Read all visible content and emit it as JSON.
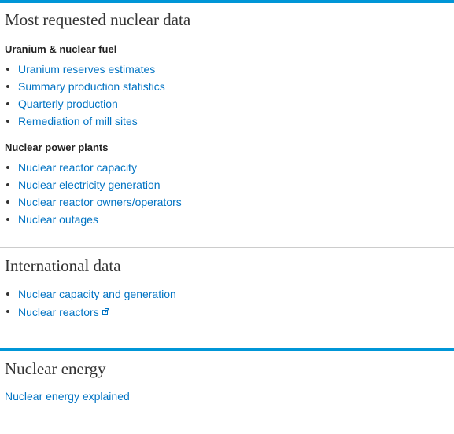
{
  "sections": {
    "most_requested": {
      "title": "Most requested nuclear data",
      "groups": [
        {
          "title": "Uranium & nuclear fuel",
          "links": [
            "Uranium reserves estimates",
            "Summary production statistics",
            "Quarterly production",
            "Remediation of mill sites"
          ]
        },
        {
          "title": "Nuclear power plants",
          "links": [
            "Nuclear reactor capacity",
            "Nuclear electricity generation",
            "Nuclear reactor owners/operators",
            "Nuclear outages"
          ]
        }
      ]
    },
    "international": {
      "title": "International data",
      "links": [
        "Nuclear capacity and generation",
        "Nuclear reactors"
      ]
    },
    "nuclear_energy": {
      "title": "Nuclear energy",
      "link": "Nuclear energy explained"
    }
  },
  "colors": {
    "accent_rule": "#0096d7",
    "link": "#0073c3",
    "divider": "#cccccc",
    "text": "#333333"
  },
  "icons": {
    "external_link": "external-link-icon",
    "bullet": "bullet-icon"
  }
}
